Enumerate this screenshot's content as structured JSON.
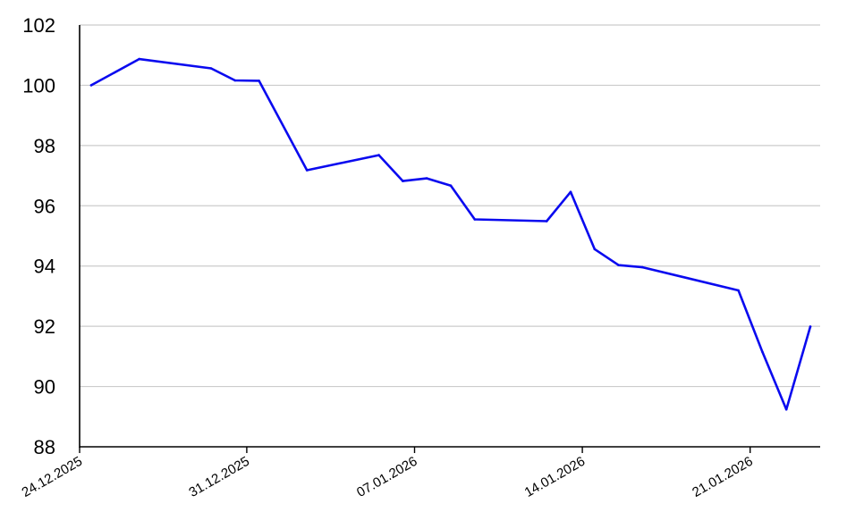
{
  "chart_data": {
    "type": "line",
    "title": "",
    "xlabel": "",
    "ylabel": "",
    "ylim": [
      88,
      102
    ],
    "xlim": [
      "2025-12-24",
      "2026-01-25"
    ],
    "yticks": [
      "88",
      "90",
      "92",
      "94",
      "96",
      "98",
      "100",
      "102"
    ],
    "xticks": [
      {
        "date": "2025-12-24",
        "label": "24.12.2025"
      },
      {
        "date": "2025-12-31",
        "label": "31.12.2025"
      },
      {
        "date": "2026-01-07",
        "label": "07.01.2026"
      },
      {
        "date": "2026-01-14",
        "label": "14.01.2026"
      },
      {
        "date": "2026-01-21",
        "label": "21.01.2026"
      }
    ],
    "grid": true,
    "series": [
      {
        "color": "#0a0aef",
        "points": [
          {
            "x": "2025-12-24",
            "y": 100.0
          },
          {
            "x": "2025-12-26",
            "y": 100.87
          },
          {
            "x": "2025-12-29",
            "y": 100.56
          },
          {
            "x": "2025-12-30",
            "y": 100.16
          },
          {
            "x": "2025-12-31",
            "y": 100.15
          },
          {
            "x": "2026-01-02",
            "y": 97.18
          },
          {
            "x": "2026-01-05",
            "y": 97.68
          },
          {
            "x": "2026-01-06",
            "y": 96.82
          },
          {
            "x": "2026-01-07",
            "y": 96.91
          },
          {
            "x": "2026-01-08",
            "y": 96.67
          },
          {
            "x": "2026-01-09",
            "y": 95.55
          },
          {
            "x": "2026-01-12",
            "y": 95.49
          },
          {
            "x": "2026-01-13",
            "y": 96.46
          },
          {
            "x": "2026-01-14",
            "y": 94.56
          },
          {
            "x": "2026-01-15",
            "y": 94.03
          },
          {
            "x": "2026-01-16",
            "y": 93.96
          },
          {
            "x": "2026-01-20",
            "y": 93.19
          },
          {
            "x": "2026-01-21",
            "y": 91.15
          },
          {
            "x": "2026-01-22",
            "y": 89.24
          },
          {
            "x": "2026-01-23",
            "y": 91.99
          }
        ]
      }
    ]
  }
}
